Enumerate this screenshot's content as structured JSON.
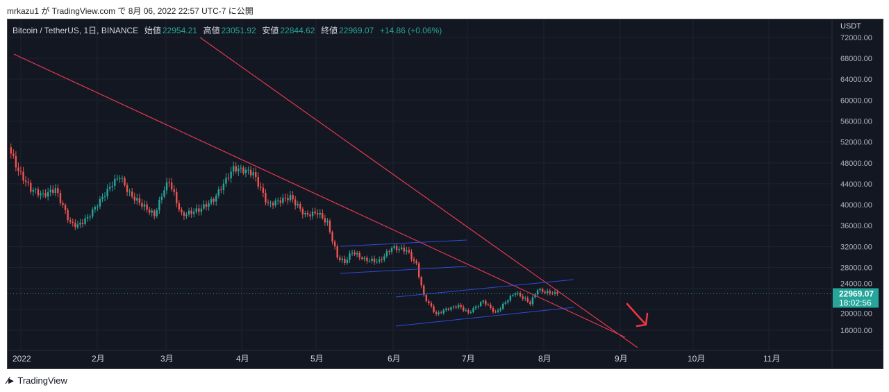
{
  "caption": "mrkazu1 が TradingView.com で 8月 06, 2022 22:57 UTC-7 に公開",
  "legend": {
    "symbol": "Bitcoin / TetherUS, 1日, BINANCE",
    "open_label": "始値",
    "open": "22954.21",
    "high_label": "高値",
    "high": "23051.92",
    "low_label": "安値",
    "low": "22844.62",
    "close_label": "終値",
    "close": "22969.07",
    "change": "+14.86 (+0.06%)"
  },
  "footer": {
    "brand": "TradingView"
  },
  "chart_data": {
    "type": "candlestick",
    "title": "Bitcoin / TetherUS, 1日, BINANCE",
    "currency": "USDT",
    "y_ticks": [
      72000,
      68000,
      64000,
      60000,
      56000,
      52000,
      48000,
      44000,
      40000,
      36000,
      32000,
      28000,
      24000,
      20000,
      16000
    ],
    "ylim": [
      12000,
      75000
    ],
    "x_ticks": [
      "2022",
      "2月",
      "3月",
      "4月",
      "5月",
      "6月",
      "7月",
      "8月",
      "9月",
      "10月",
      "11月"
    ],
    "last_price": "22969.07",
    "countdown": "18:02:56",
    "approx_close_path": [
      [
        "2021-12-27",
        51000
      ],
      [
        "2021-12-31",
        46500
      ],
      [
        "2022-01-05",
        43000
      ],
      [
        "2022-01-10",
        41800
      ],
      [
        "2022-01-15",
        43000
      ],
      [
        "2022-01-21",
        36500
      ],
      [
        "2022-01-24",
        36000
      ],
      [
        "2022-01-28",
        37500
      ],
      [
        "2022-02-07",
        44000
      ],
      [
        "2022-02-10",
        45500
      ],
      [
        "2022-02-14",
        42000
      ],
      [
        "2022-02-19",
        40000
      ],
      [
        "2022-02-24",
        38000
      ],
      [
        "2022-02-28",
        43000
      ],
      [
        "2022-03-02",
        44500
      ],
      [
        "2022-03-07",
        38000
      ],
      [
        "2022-03-14",
        39000
      ],
      [
        "2022-03-20",
        41000
      ],
      [
        "2022-03-28",
        47000
      ],
      [
        "2022-04-02",
        46500
      ],
      [
        "2022-04-05",
        46000
      ],
      [
        "2022-04-11",
        40000
      ],
      [
        "2022-04-20",
        41500
      ],
      [
        "2022-04-26",
        38000
      ],
      [
        "2022-05-01",
        38500
      ],
      [
        "2022-05-05",
        36500
      ],
      [
        "2022-05-09",
        30000
      ],
      [
        "2022-05-12",
        29000
      ],
      [
        "2022-05-15",
        31000
      ],
      [
        "2022-05-20",
        29500
      ],
      [
        "2022-05-26",
        29200
      ],
      [
        "2022-05-31",
        31800
      ],
      [
        "2022-06-06",
        31300
      ],
      [
        "2022-06-10",
        28500
      ],
      [
        "2022-06-13",
        22500
      ],
      [
        "2022-06-18",
        19000
      ],
      [
        "2022-06-22",
        20000
      ],
      [
        "2022-06-27",
        20700
      ],
      [
        "2022-07-01",
        19300
      ],
      [
        "2022-07-07",
        21600
      ],
      [
        "2022-07-12",
        19300
      ],
      [
        "2022-07-18",
        22400
      ],
      [
        "2022-07-20",
        23200
      ],
      [
        "2022-07-26",
        21200
      ],
      [
        "2022-07-29",
        23800
      ],
      [
        "2022-08-01",
        23300
      ],
      [
        "2022-08-06",
        22969
      ]
    ]
  }
}
